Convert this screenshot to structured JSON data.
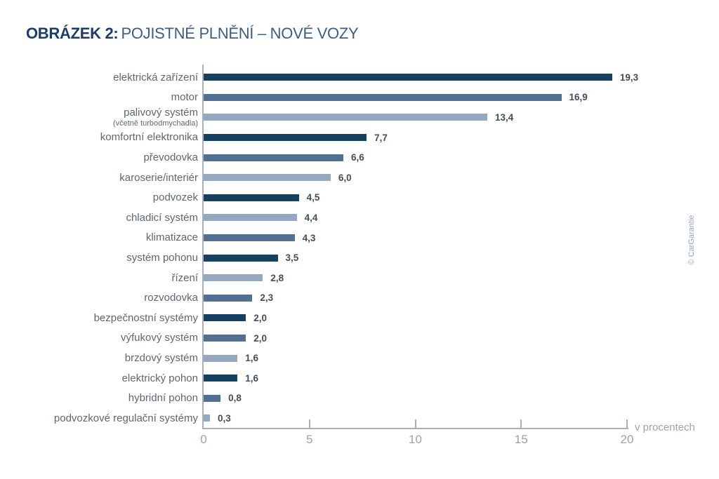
{
  "title": {
    "prefix": "OBRÁZEK 2:",
    "text": "POJISTNÉ PLNĚNÍ – NOVÉ VOZY"
  },
  "credit": "© CarGarantie",
  "chart_data": {
    "type": "bar",
    "orientation": "horizontal",
    "title": "OBRÁZEK 2: POJISTNÉ PLNĚNÍ – NOVÉ VOZY",
    "unit_label": "v procentech",
    "xlim": [
      0,
      20
    ],
    "xticks": [
      0,
      5,
      10,
      15,
      20
    ],
    "grid": false,
    "legend": false,
    "colors": {
      "dark": "#16405f",
      "medium": "#527192",
      "light": "#94a9c0"
    },
    "axis_color": "#a8b1b9",
    "label_color": "#5f666d",
    "value_color": "#414e5a",
    "bars": [
      {
        "label": "elektrická zařízení",
        "sublabel": "",
        "value": 19.3,
        "display": "19,3",
        "color": "dark"
      },
      {
        "label": "motor",
        "sublabel": "",
        "value": 16.9,
        "display": "16,9",
        "color": "medium"
      },
      {
        "label": "palivový systém",
        "sublabel": "(včetně turbodmychadla)",
        "value": 13.4,
        "display": "13,4",
        "color": "light"
      },
      {
        "label": "komfortní elektronika",
        "sublabel": "",
        "value": 7.7,
        "display": "7,7",
        "color": "dark"
      },
      {
        "label": "převodovka",
        "sublabel": "",
        "value": 6.6,
        "display": "6,6",
        "color": "medium"
      },
      {
        "label": "karoserie/interiér",
        "sublabel": "",
        "value": 6.0,
        "display": "6,0",
        "color": "light"
      },
      {
        "label": "podvozek",
        "sublabel": "",
        "value": 4.5,
        "display": "4,5",
        "color": "dark"
      },
      {
        "label": "chladicí systém",
        "sublabel": "",
        "value": 4.4,
        "display": "4,4",
        "color": "light"
      },
      {
        "label": "klimatizace",
        "sublabel": "",
        "value": 4.3,
        "display": "4,3",
        "color": "medium"
      },
      {
        "label": "systém pohonu",
        "sublabel": "",
        "value": 3.5,
        "display": "3,5",
        "color": "dark"
      },
      {
        "label": "řízení",
        "sublabel": "",
        "value": 2.8,
        "display": "2,8",
        "color": "light"
      },
      {
        "label": "rozvodovka",
        "sublabel": "",
        "value": 2.3,
        "display": "2,3",
        "color": "medium"
      },
      {
        "label": "bezpečnostní systémy",
        "sublabel": "",
        "value": 2.0,
        "display": "2,0",
        "color": "dark"
      },
      {
        "label": "výfukový systém",
        "sublabel": "",
        "value": 2.0,
        "display": "2,0",
        "color": "medium"
      },
      {
        "label": "brzdový systém",
        "sublabel": "",
        "value": 1.6,
        "display": "1,6",
        "color": "light"
      },
      {
        "label": "elektrický pohon",
        "sublabel": "",
        "value": 1.6,
        "display": "1,6",
        "color": "dark"
      },
      {
        "label": "hybridní pohon",
        "sublabel": "",
        "value": 0.8,
        "display": "0,8",
        "color": "medium"
      },
      {
        "label": "podvozkové regulační systémy",
        "sublabel": "",
        "value": 0.3,
        "display": "0,3",
        "color": "light"
      }
    ]
  }
}
